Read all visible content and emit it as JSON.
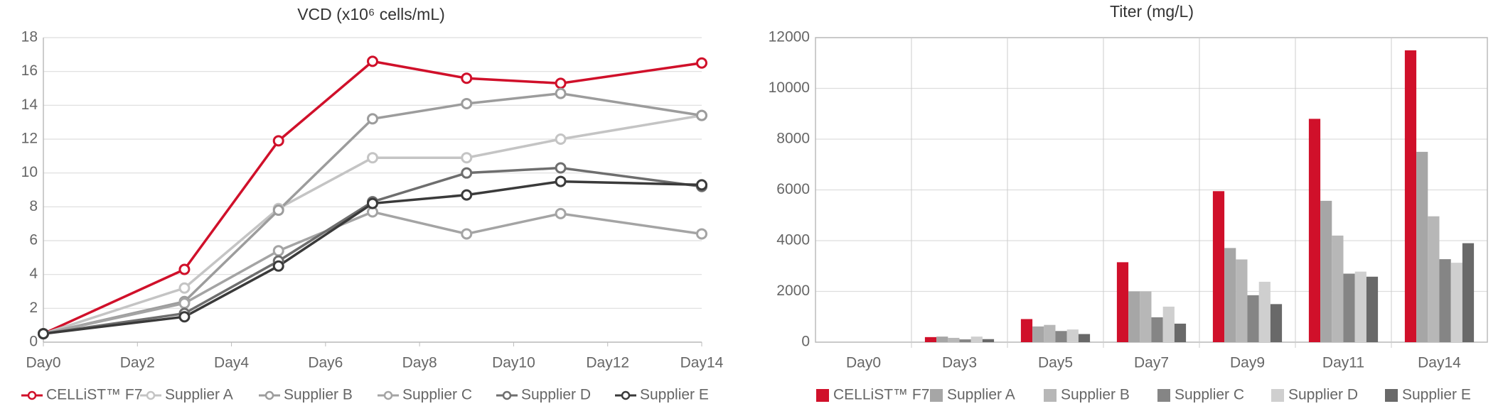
{
  "chart_data": [
    {
      "type": "line",
      "title": "VCD (x10⁶ cells/mL)",
      "x": [
        0,
        3,
        5,
        7,
        9,
        11,
        14
      ],
      "xlim": [
        0,
        14
      ],
      "xticks": [
        {
          "value": 0,
          "label": "Day0"
        },
        {
          "value": 2,
          "label": "Day2"
        },
        {
          "value": 4,
          "label": "Day4"
        },
        {
          "value": 6,
          "label": "Day6"
        },
        {
          "value": 8,
          "label": "Day8"
        },
        {
          "value": 10,
          "label": "Day10"
        },
        {
          "value": 12,
          "label": "Day12"
        },
        {
          "value": 14,
          "label": "Day14"
        }
      ],
      "ylim": [
        0,
        18
      ],
      "yticks": [
        0,
        2,
        4,
        6,
        8,
        10,
        12,
        14,
        16,
        18
      ],
      "grid": true,
      "series": [
        {
          "name": "CELLiST™ F7",
          "color": "#d0102a",
          "values": [
            0.5,
            4.3,
            11.9,
            16.6,
            15.6,
            15.3,
            16.5
          ]
        },
        {
          "name": "Supplier A",
          "color": "#c4c4c4",
          "values": [
            0.5,
            3.2,
            7.9,
            10.9,
            10.9,
            12.0,
            13.4
          ]
        },
        {
          "name": "Supplier B",
          "color": "#9c9c9c",
          "values": [
            0.5,
            2.4,
            7.8,
            13.2,
            14.1,
            14.7,
            13.4
          ]
        },
        {
          "name": "Supplier C",
          "color": "#a4a4a4",
          "values": [
            0.5,
            2.3,
            5.4,
            7.7,
            6.4,
            7.6,
            6.4
          ]
        },
        {
          "name": "Supplier D",
          "color": "#6e6e6e",
          "values": [
            0.5,
            1.7,
            4.8,
            8.3,
            10.0,
            10.3,
            9.2
          ]
        },
        {
          "name": "Supplier E",
          "color": "#3a3a3a",
          "values": [
            0.5,
            1.5,
            4.5,
            8.2,
            8.7,
            9.5,
            9.3
          ]
        }
      ]
    },
    {
      "type": "bar",
      "title": "Titer (mg/L)",
      "categories": [
        "Day0",
        "Day3",
        "Day5",
        "Day7",
        "Day9",
        "Day11",
        "Day14"
      ],
      "ylim": [
        0,
        12000
      ],
      "yticks": [
        0,
        2000,
        4000,
        6000,
        8000,
        10000,
        12000
      ],
      "grid": true,
      "series": [
        {
          "name": "CELLiST™ F7",
          "color": "#d0102a",
          "values": [
            0,
            200,
            910,
            3150,
            5950,
            8800,
            11500
          ]
        },
        {
          "name": "Supplier A",
          "color": "#a6a6a6",
          "values": [
            0,
            220,
            620,
            2000,
            3710,
            5570,
            7500
          ]
        },
        {
          "name": "Supplier B",
          "color": "#b7b7b7",
          "values": [
            0,
            170,
            680,
            2000,
            3260,
            4200,
            4960
          ]
        },
        {
          "name": "Supplier C",
          "color": "#858585",
          "values": [
            0,
            110,
            440,
            980,
            1850,
            2700,
            3270
          ]
        },
        {
          "name": "Supplier D",
          "color": "#cfcfcf",
          "values": [
            0,
            220,
            500,
            1400,
            2380,
            2780,
            3130
          ]
        },
        {
          "name": "Supplier E",
          "color": "#696969",
          "values": [
            0,
            120,
            320,
            730,
            1500,
            2580,
            3900
          ]
        }
      ]
    }
  ]
}
